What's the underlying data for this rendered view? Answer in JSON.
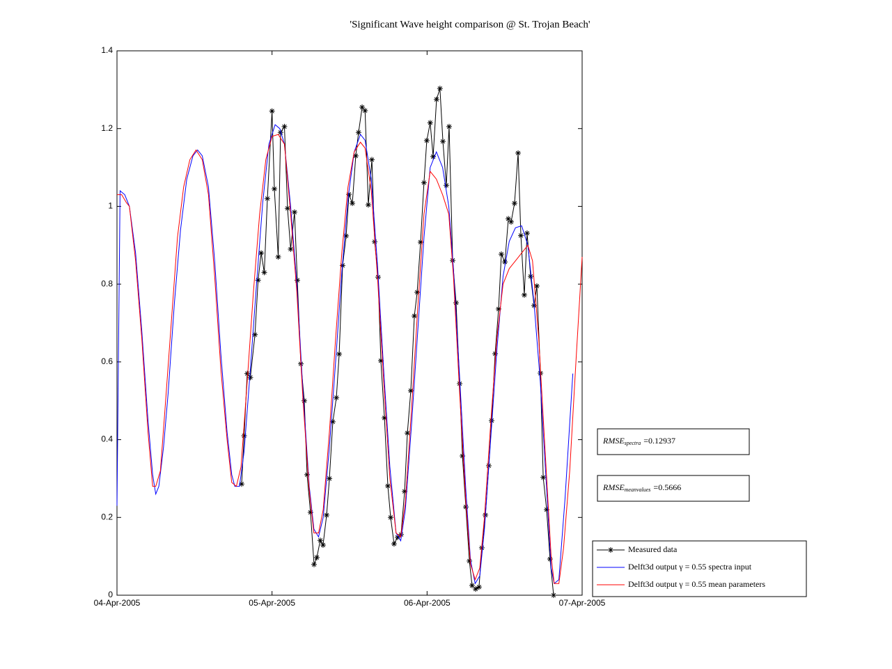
{
  "chart_data": {
    "type": "line",
    "title": "'Significant Wave height comparison @ St. Trojan Beach'",
    "xlim": [
      0,
      3
    ],
    "xticks": [
      {
        "value": 0,
        "label": "04-Apr-2005"
      },
      {
        "value": 1,
        "label": "05-Apr-2005"
      },
      {
        "value": 2,
        "label": "06-Apr-2005"
      },
      {
        "value": 3,
        "label": "07-Apr-2005"
      }
    ],
    "ylim": [
      0,
      1.4
    ],
    "yticks": [
      0,
      0.2,
      0.4,
      0.6,
      0.8,
      1,
      1.2,
      1.4
    ],
    "grid": false,
    "legend": "lower-right-outside",
    "annotations": [
      {
        "main": "RMSE",
        "sub": "spectra",
        "text": "=0.12937"
      },
      {
        "main": "RMSE",
        "sub": "meanvalues",
        "text": "=0.5666"
      }
    ],
    "series": [
      {
        "name": "Measured data",
        "color": "#000000",
        "marker": "*",
        "x": [
          0.804,
          0.82,
          0.84,
          0.86,
          0.89,
          0.91,
          0.93,
          0.95,
          0.97,
          1.0,
          1.015,
          1.04,
          1.055,
          1.08,
          1.1,
          1.12,
          1.145,
          1.163,
          1.186,
          1.208,
          1.226,
          1.248,
          1.271,
          1.289,
          1.311,
          1.329,
          1.352,
          1.37,
          1.392,
          1.415,
          1.433,
          1.455,
          1.478,
          1.496,
          1.518,
          1.54,
          1.558,
          1.581,
          1.6,
          1.621,
          1.644,
          1.662,
          1.684,
          1.702,
          1.725,
          1.747,
          1.765,
          1.787,
          1.81,
          1.832,
          1.855,
          1.873,
          1.895,
          1.918,
          1.936,
          1.958,
          1.98,
          1.998,
          2.02,
          2.039,
          2.061,
          2.083,
          2.102,
          2.124,
          2.142,
          2.165,
          2.187,
          2.21,
          2.228,
          2.25,
          2.273,
          2.29,
          2.313,
          2.335,
          2.353,
          2.376,
          2.398,
          2.416,
          2.439,
          2.461,
          2.479,
          2.502,
          2.524,
          2.542,
          2.564,
          2.587,
          2.605,
          2.627,
          2.645,
          2.668,
          2.69,
          2.708,
          2.731,
          2.749,
          2.771,
          2.793,
          2.816
        ],
        "values": [
          0.286,
          0.41,
          0.57,
          0.56,
          0.67,
          0.81,
          0.88,
          0.83,
          1.02,
          1.245,
          1.045,
          0.87,
          1.19,
          1.205,
          0.995,
          0.89,
          0.985,
          0.81,
          0.595,
          0.5,
          0.31,
          0.213,
          0.079,
          0.097,
          0.141,
          0.129,
          0.206,
          0.3,
          0.446,
          0.508,
          0.62,
          0.848,
          0.924,
          1.031,
          1.008,
          1.13,
          1.19,
          1.255,
          1.246,
          1.004,
          1.12,
          0.909,
          0.818,
          0.603,
          0.456,
          0.281,
          0.2,
          0.132,
          0.149,
          0.156,
          0.267,
          0.417,
          0.526,
          0.718,
          0.779,
          0.908,
          1.061,
          1.169,
          1.215,
          1.128,
          1.275,
          1.303,
          1.167,
          1.054,
          1.205,
          0.861,
          0.752,
          0.544,
          0.358,
          0.227,
          0.088,
          0.025,
          0.016,
          0.021,
          0.122,
          0.206,
          0.333,
          0.449,
          0.621,
          0.736,
          0.877,
          0.857,
          0.968,
          0.96,
          1.008,
          1.137,
          0.925,
          0.772,
          0.931,
          0.82,
          0.745,
          0.795,
          0.571,
          0.303,
          0.22,
          0.093,
          0
        ]
      },
      {
        "name": "Delft3d output γ = 0.55 spectra input",
        "color": "#0000ff",
        "x": [
          0,
          0.02,
          0.05,
          0.08,
          0.12,
          0.16,
          0.2,
          0.23,
          0.25,
          0.27,
          0.3,
          0.33,
          0.37,
          0.41,
          0.45,
          0.49,
          0.52,
          0.55,
          0.59,
          0.63,
          0.67,
          0.71,
          0.74,
          0.76,
          0.79,
          0.82,
          0.86,
          0.9,
          0.94,
          0.98,
          1.02,
          1.05,
          1.08,
          1.12,
          1.16,
          1.2,
          1.24,
          1.27,
          1.3,
          1.33,
          1.37,
          1.41,
          1.45,
          1.49,
          1.53,
          1.57,
          1.6,
          1.64,
          1.68,
          1.72,
          1.76,
          1.8,
          1.83,
          1.86,
          1.9,
          1.94,
          1.98,
          2.02,
          2.06,
          2.1,
          2.14,
          2.17,
          2.21,
          2.25,
          2.28,
          2.31,
          2.34,
          2.37,
          2.41,
          2.45,
          2.49,
          2.53,
          2.57,
          2.61,
          2.65,
          2.69,
          2.73,
          2.77,
          2.8,
          2.82,
          2.85,
          2.89,
          2.94
        ],
        "values": [
          0.23,
          1.04,
          1.03,
          1.0,
          0.88,
          0.68,
          0.45,
          0.31,
          0.26,
          0.28,
          0.38,
          0.52,
          0.75,
          0.94,
          1.07,
          1.13,
          1.145,
          1.13,
          1.05,
          0.86,
          0.62,
          0.42,
          0.31,
          0.28,
          0.28,
          0.37,
          0.58,
          0.8,
          1.01,
          1.16,
          1.21,
          1.2,
          1.16,
          1.0,
          0.8,
          0.52,
          0.28,
          0.17,
          0.15,
          0.2,
          0.38,
          0.6,
          0.83,
          1.02,
          1.14,
          1.185,
          1.17,
          1.07,
          0.85,
          0.58,
          0.33,
          0.16,
          0.14,
          0.22,
          0.44,
          0.68,
          0.92,
          1.1,
          1.14,
          1.1,
          1.0,
          0.84,
          0.56,
          0.27,
          0.09,
          0.03,
          0.05,
          0.17,
          0.4,
          0.63,
          0.82,
          0.91,
          0.945,
          0.95,
          0.9,
          0.75,
          0.55,
          0.28,
          0.07,
          0.03,
          0.04,
          0.25,
          0.57
        ]
      },
      {
        "name": "Delft3d output γ = 0.55 mean parameters",
        "color": "#ff0000",
        "x": [
          0,
          0.03,
          0.06,
          0.08,
          0.12,
          0.16,
          0.2,
          0.23,
          0.25,
          0.28,
          0.31,
          0.35,
          0.39,
          0.43,
          0.47,
          0.51,
          0.55,
          0.59,
          0.63,
          0.67,
          0.71,
          0.74,
          0.77,
          0.8,
          0.84,
          0.88,
          0.92,
          0.96,
          1.0,
          1.04,
          1.08,
          1.12,
          1.16,
          1.2,
          1.24,
          1.27,
          1.3,
          1.33,
          1.37,
          1.41,
          1.45,
          1.49,
          1.53,
          1.57,
          1.6,
          1.64,
          1.68,
          1.72,
          1.76,
          1.8,
          1.83,
          1.86,
          1.9,
          1.94,
          1.98,
          2.02,
          2.06,
          2.1,
          2.14,
          2.17,
          2.21,
          2.25,
          2.28,
          2.31,
          2.34,
          2.37,
          2.41,
          2.45,
          2.49,
          2.53,
          2.57,
          2.61,
          2.65,
          2.68,
          2.72,
          2.76,
          2.8,
          2.82,
          2.85,
          2.88,
          2.92,
          2.96,
          3.0
        ],
        "values": [
          1.03,
          1.03,
          1.01,
          1.0,
          0.86,
          0.66,
          0.42,
          0.28,
          0.28,
          0.32,
          0.48,
          0.7,
          0.92,
          1.05,
          1.12,
          1.145,
          1.12,
          1.03,
          0.82,
          0.58,
          0.4,
          0.29,
          0.28,
          0.33,
          0.55,
          0.78,
          0.98,
          1.12,
          1.18,
          1.185,
          1.16,
          0.98,
          0.78,
          0.5,
          0.27,
          0.16,
          0.16,
          0.22,
          0.42,
          0.66,
          0.88,
          1.05,
          1.14,
          1.165,
          1.15,
          1.04,
          0.82,
          0.55,
          0.3,
          0.16,
          0.15,
          0.24,
          0.48,
          0.74,
          0.98,
          1.09,
          1.07,
          1.03,
          0.98,
          0.82,
          0.52,
          0.24,
          0.08,
          0.04,
          0.07,
          0.2,
          0.44,
          0.66,
          0.8,
          0.84,
          0.86,
          0.88,
          0.9,
          0.86,
          0.66,
          0.38,
          0.1,
          0.03,
          0.03,
          0.12,
          0.32,
          0.6,
          0.87
        ]
      }
    ]
  }
}
